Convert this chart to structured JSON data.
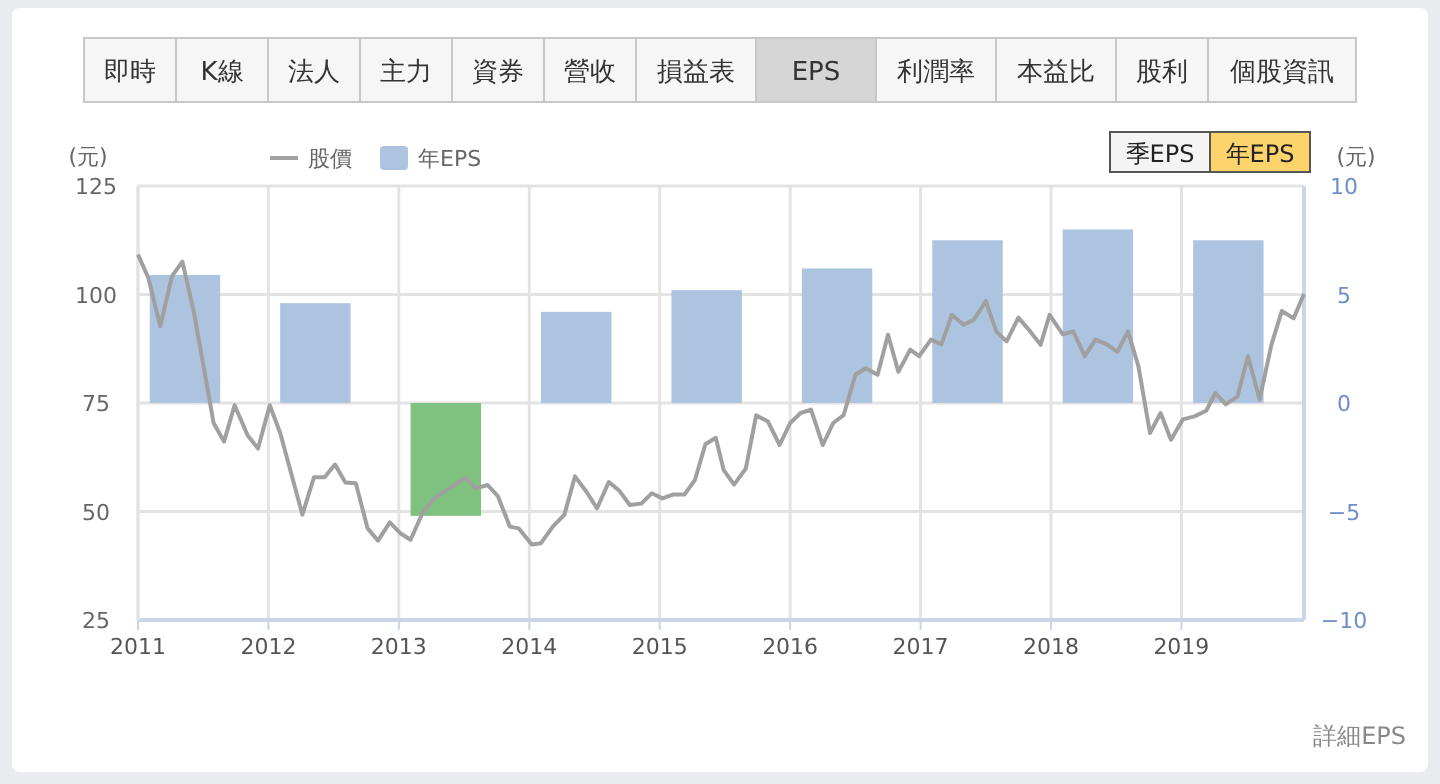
{
  "chart_data": {
    "type": "bar",
    "annotations": [
      "即時",
      "K線",
      "法人",
      "主力",
      "資券",
      "營收",
      "損益表",
      "EPS",
      "利潤率",
      "本益比",
      "股利",
      "個股資訊",
      "季EPS",
      "年EPS",
      "詳細EPS"
    ],
    "ylabel": "(元)",
    "y2label": "(元)",
    "xlim": [
      2011,
      2019.94
    ],
    "xticks": [
      2011,
      2012,
      2013,
      2014,
      2015,
      2016,
      2017,
      2018,
      2019
    ],
    "ylim": [
      25,
      125
    ],
    "yticks": [
      25,
      50,
      75,
      100,
      125
    ],
    "y2lim": [
      -10,
      10
    ],
    "y2ticks": [
      -10,
      -5,
      0,
      5,
      10
    ],
    "grid": true,
    "legend": "top",
    "series": [
      {
        "name": "年EPS",
        "axis": "y2",
        "color": "#adc4e1",
        "colors": [
          "#adc4e1",
          "#adc4e1",
          "#7fc17f",
          "#adc4e1",
          "#adc4e1",
          "#adc4e1",
          "#adc4e1",
          "#adc4e1",
          "#adc4e1"
        ],
        "x": [
          2011.36,
          2012.36,
          2013.36,
          2014.36,
          2015.36,
          2016.36,
          2017.36,
          2018.36,
          2019.36
        ],
        "values": [
          5.9,
          4.6,
          -5.2,
          4.2,
          5.2,
          6.2,
          7.5,
          8.0,
          7.5
        ]
      },
      {
        "name": "股價",
        "type": "line",
        "color": "#a0a0a0",
        "x": [
          2011.0,
          2011.08,
          2011.17,
          2011.26,
          2011.34,
          2011.43,
          2011.58,
          2011.66,
          2011.74,
          2011.84,
          2011.92,
          2012.01,
          2012.09,
          2012.26,
          2012.35,
          2012.43,
          2012.51,
          2012.59,
          2012.67,
          2012.76,
          2012.84,
          2012.93,
          2013.01,
          2013.09,
          2013.18,
          2013.27,
          2013.43,
          2013.51,
          2013.59,
          2013.68,
          2013.76,
          2013.85,
          2013.92,
          2014.02,
          2014.09,
          2014.18,
          2014.27,
          2014.35,
          2014.44,
          2014.52,
          2014.61,
          2014.69,
          2014.77,
          2014.86,
          2014.94,
          2015.02,
          2015.1,
          2015.19,
          2015.27,
          2015.35,
          2015.43,
          2015.49,
          2015.57,
          2015.66,
          2015.74,
          2015.83,
          2015.92,
          2016.0,
          2016.08,
          2016.16,
          2016.25,
          2016.33,
          2016.41,
          2016.5,
          2016.58,
          2016.67,
          2016.75,
          2016.83,
          2016.92,
          2016.99,
          2017.08,
          2017.16,
          2017.24,
          2017.33,
          2017.41,
          2017.5,
          2017.58,
          2017.66,
          2017.75,
          2017.84,
          2017.92,
          2017.99,
          2018.09,
          2018.17,
          2018.26,
          2018.34,
          2018.43,
          2018.51,
          2018.59,
          2018.67,
          2018.76,
          2018.84,
          2018.92,
          2019.01,
          2019.1,
          2019.19,
          2019.26,
          2019.34,
          2019.43,
          2019.51,
          2019.6,
          2019.69,
          2019.77,
          2019.86,
          2019.94
        ],
        "values": [
          109.2,
          103.8,
          92.7,
          104.2,
          107.6,
          95.8,
          70.4,
          66.1,
          74.5,
          67.6,
          64.5,
          74.5,
          68.1,
          49.3,
          57.9,
          57.9,
          60.8,
          56.7,
          56.5,
          46.1,
          43.3,
          47.5,
          45.0,
          43.5,
          49.6,
          53.0,
          56.2,
          57.8,
          55.3,
          56.1,
          53.5,
          46.5,
          46.1,
          42.4,
          42.7,
          46.5,
          49.3,
          58.1,
          54.5,
          50.7,
          56.8,
          54.8,
          51.5,
          51.8,
          54.2,
          53.0,
          53.9,
          53.9,
          57.3,
          65.5,
          67.0,
          59.6,
          56.2,
          59.9,
          72.2,
          70.7,
          65.3,
          70.4,
          72.7,
          73.5,
          65.3,
          70.4,
          72.2,
          81.5,
          83.0,
          81.5,
          90.7,
          82.2,
          87.3,
          85.8,
          89.6,
          88.5,
          95.3,
          93.0,
          94.2,
          98.5,
          91.5,
          89.2,
          94.7,
          91.5,
          88.4,
          95.3,
          90.8,
          91.5,
          85.8,
          89.6,
          88.5,
          86.8,
          91.5,
          83.5,
          68.1,
          72.7,
          66.5,
          71.2,
          71.9,
          73.2,
          77.3,
          74.7,
          76.5,
          85.8,
          75.8,
          88.4,
          96.2,
          94.5,
          100.1
        ]
      }
    ]
  }
}
